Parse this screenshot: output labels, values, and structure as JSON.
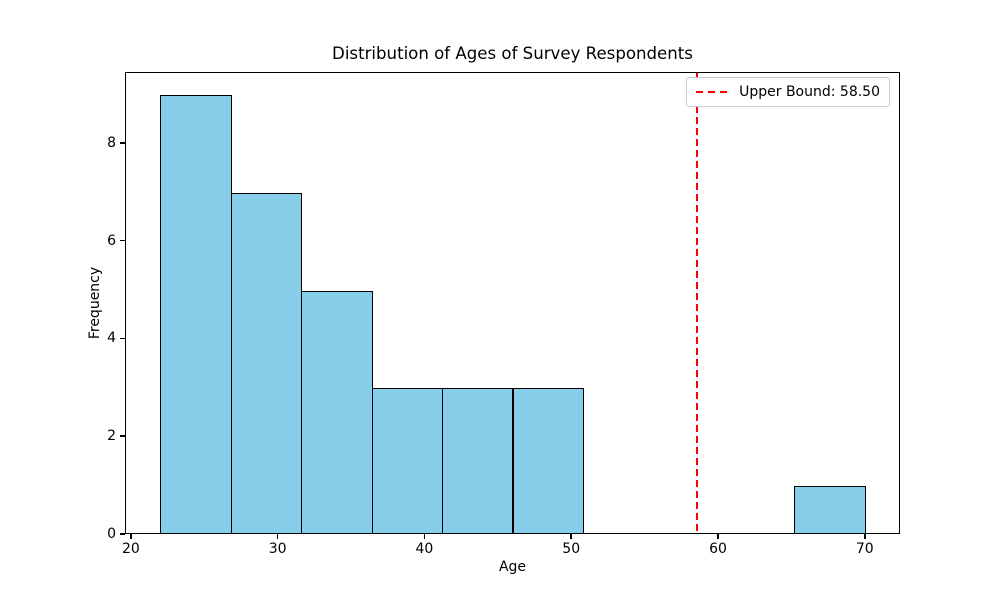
{
  "title": "Distribution of Ages of Survey Respondents",
  "chart_data": {
    "type": "bar",
    "subtype": "histogram",
    "title": "Distribution of Ages of Survey Respondents",
    "xlabel": "Age",
    "ylabel": "Frequency",
    "bin_edges": [
      22.0,
      26.8,
      31.6,
      36.4,
      41.2,
      46.0,
      50.8,
      55.6,
      60.4,
      65.2,
      70.0
    ],
    "counts": [
      9,
      7,
      5,
      3,
      3,
      3,
      0,
      0,
      0,
      1
    ],
    "xlim": [
      19.6,
      72.4
    ],
    "ylim": [
      0,
      9.45
    ],
    "xticks": [
      20,
      30,
      40,
      50,
      60,
      70
    ],
    "yticks": [
      0,
      2,
      4,
      6,
      8
    ],
    "grid": false,
    "bar_fill_color": "#87CEEB",
    "bar_edge_color": "#000000",
    "vline": {
      "x": 58.5,
      "color": "#FF0000",
      "style": "dashed"
    },
    "legend": {
      "position": "upper right",
      "entries": [
        {
          "label": "Upper Bound: 58.50",
          "color": "#FF0000",
          "line_style": "dashed"
        }
      ]
    }
  }
}
